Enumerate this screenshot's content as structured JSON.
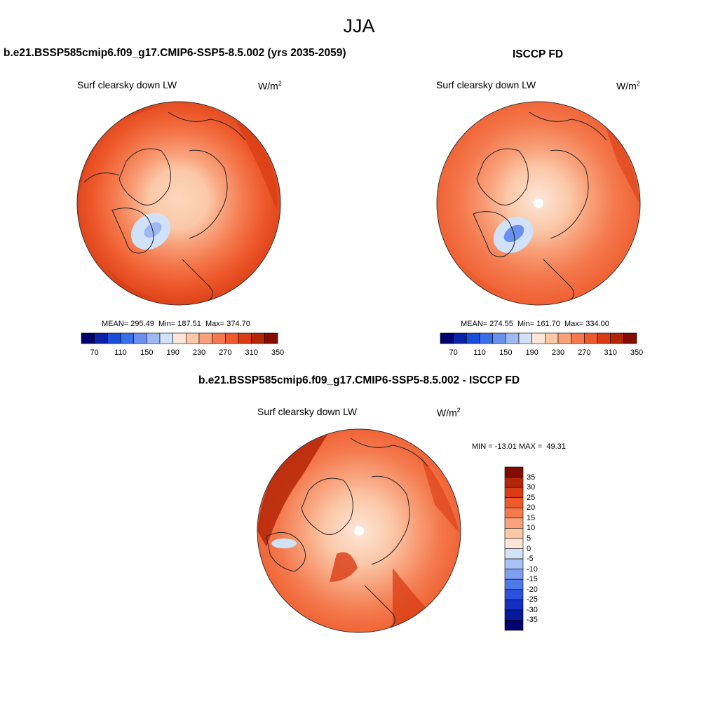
{
  "figure": {
    "season": "JJA",
    "variable": "Surf clearsky down LW",
    "units_base": "W/m",
    "units_exp": "2"
  },
  "panel_model": {
    "title": "b.e21.BSSP585cmip6.f09_g17.CMIP6-SSP5-8.5.002 (yrs 2035-2059)",
    "stats": "MEAN= 295.49  Min= 187.51  Max= 374.70"
  },
  "panel_obs": {
    "title": "ISCCP FD",
    "stats": "MEAN= 274.55  Min= 161.70  Max= 334.00"
  },
  "panel_diff": {
    "title": "b.e21.BSSP585cmip6.f09_g17.CMIP6-SSP5-8.5.002 - ISCCP FD",
    "stats": "MIN = -13.01 MAX =  49.31"
  },
  "colorbar_main": {
    "colors": [
      "#00006e",
      "#0a22a6",
      "#1a4ed9",
      "#3a6ee8",
      "#6890ec",
      "#9fb8f2",
      "#d1e1f8",
      "#fde6d8",
      "#fbc8a8",
      "#f8a27c",
      "#f47a4e",
      "#ee5a2c",
      "#d93c14",
      "#b42608",
      "#820c00"
    ],
    "tick_labels": [
      "70",
      "110",
      "150",
      "190",
      "230",
      "270",
      "310",
      "350"
    ]
  },
  "colorbar_diff": {
    "colors": [
      "#820c00",
      "#b42608",
      "#d93c14",
      "#ee5a2c",
      "#f47a4e",
      "#f8a27c",
      "#fbc8a8",
      "#fde6d8",
      "#d1e1f8",
      "#a8c2f4",
      "#7e9ff0",
      "#4f78ea",
      "#2a52dd",
      "#1230c0",
      "#061a98",
      "#00006e"
    ],
    "labels": [
      "35",
      "30",
      "25",
      "20",
      "15",
      "10",
      "5",
      "0",
      "-5",
      "-10",
      "-15",
      "-20",
      "-25",
      "-30",
      "-35"
    ]
  }
}
